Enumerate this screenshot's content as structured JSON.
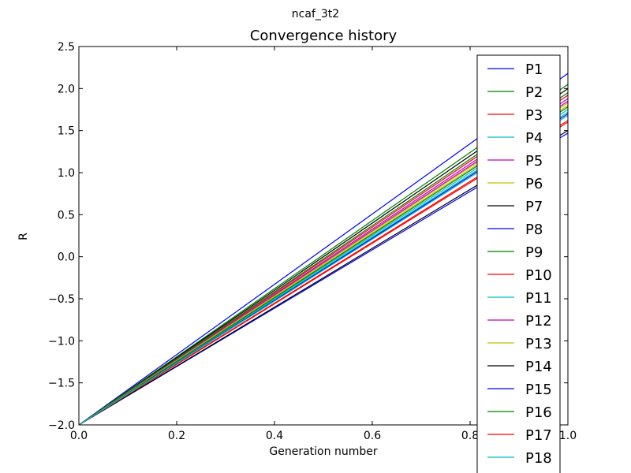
{
  "chart_data": {
    "type": "line",
    "suptitle": "ncaf_3t2",
    "title": "Convergence history",
    "xlabel": "Generation number",
    "ylabel": "R",
    "xlim": [
      0.0,
      1.0
    ],
    "ylim": [
      -2.0,
      2.5
    ],
    "xticks": [
      "0.0",
      "0.2",
      "0.4",
      "0.6",
      "0.8",
      "1.0"
    ],
    "yticks": [
      "−2.0",
      "−1.5",
      "−1.0",
      "−0.5",
      "0.0",
      "0.5",
      "1.0",
      "1.5",
      "2.0",
      "2.5"
    ],
    "grid": false,
    "legend_position": "right, overflowing",
    "series": [
      {
        "name": "P1",
        "color": "#0000ff",
        "x": [
          0,
          1
        ],
        "y": [
          -2,
          2.18
        ]
      },
      {
        "name": "P2",
        "color": "#008000",
        "x": [
          0,
          1
        ],
        "y": [
          -2,
          2.05
        ]
      },
      {
        "name": "P3",
        "color": "#ff0000",
        "x": [
          0,
          1
        ],
        "y": [
          -2,
          1.92
        ]
      },
      {
        "name": "P4",
        "color": "#00bfbf",
        "x": [
          0,
          1
        ],
        "y": [
          -2,
          1.72
        ]
      },
      {
        "name": "P5",
        "color": "#bf00bf",
        "x": [
          0,
          1
        ],
        "y": [
          -2,
          1.85
        ]
      },
      {
        "name": "P6",
        "color": "#bfbf00",
        "x": [
          0,
          1
        ],
        "y": [
          -2,
          1.8
        ]
      },
      {
        "name": "P7",
        "color": "#000000",
        "x": [
          0,
          1
        ],
        "y": [
          -2,
          2.0
        ]
      },
      {
        "name": "P8",
        "color": "#0000ff",
        "x": [
          0,
          1
        ],
        "y": [
          -2,
          1.47
        ]
      },
      {
        "name": "P9",
        "color": "#008000",
        "x": [
          0,
          1
        ],
        "y": [
          -2,
          1.95
        ]
      },
      {
        "name": "P10",
        "color": "#ff0000",
        "x": [
          0,
          1
        ],
        "y": [
          -2,
          1.62
        ]
      },
      {
        "name": "P11",
        "color": "#00bfbf",
        "x": [
          0,
          1
        ],
        "y": [
          -2,
          1.75
        ]
      },
      {
        "name": "P12",
        "color": "#bf00bf",
        "x": [
          0,
          1
        ],
        "y": [
          -2,
          1.88
        ]
      },
      {
        "name": "P13",
        "color": "#bfbf00",
        "x": [
          0,
          1
        ],
        "y": [
          -2,
          1.83
        ]
      },
      {
        "name": "P14",
        "color": "#000000",
        "x": [
          0,
          1
        ],
        "y": [
          -2,
          1.5
        ]
      },
      {
        "name": "P15",
        "color": "#0000ff",
        "x": [
          0,
          1
        ],
        "y": [
          -2,
          1.7
        ]
      },
      {
        "name": "P16",
        "color": "#008000",
        "x": [
          0,
          1
        ],
        "y": [
          -2,
          1.78
        ]
      },
      {
        "name": "P17",
        "color": "#ff0000",
        "x": [
          0,
          1
        ],
        "y": [
          -2,
          1.6
        ]
      },
      {
        "name": "P18",
        "color": "#00bfbf",
        "x": [
          0,
          1
        ],
        "y": [
          -2,
          1.68
        ]
      }
    ]
  }
}
